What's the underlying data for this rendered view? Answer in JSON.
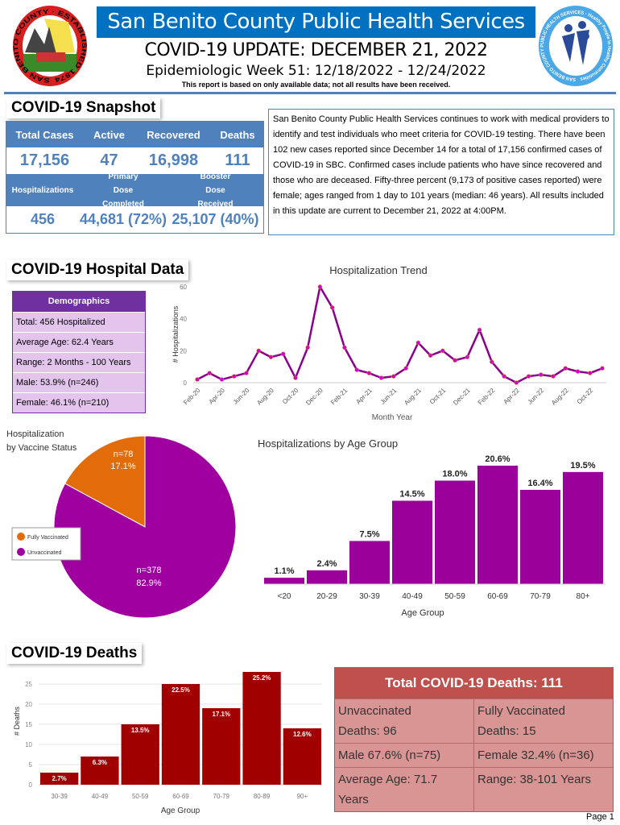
{
  "header": {
    "title": "San Benito County Public Health Services",
    "update": "COVID-19 UPDATE: DECEMBER 21, 2022",
    "week": "Epidemiologic Week 51: 12/18/2022 - 12/24/2022",
    "note": "This report is based on only available data; not all results have been received.",
    "left_logo_text": "SAN BENITO COUNTY · ESTABLISHED 1874",
    "right_logo_text": "SAN BENITO COUNTY PUBLIC HEALTH SERVICES · Healthy People in Healthy Communities"
  },
  "snapshot": {
    "title": "COVID-19 Snapshot",
    "row1_labels": [
      "Total Cases",
      "Active",
      "Recovered",
      "Deaths"
    ],
    "row1_values": [
      "17,156",
      "47",
      "16,998",
      "111"
    ],
    "row2_labels": [
      "Hospitalizations",
      "Primary Dose Completed",
      "Booster Dose Received"
    ],
    "row2_values": [
      "456",
      "44,681 (72%)",
      "25,107 (40%)"
    ],
    "paragraph": "San Benito County Public Health Services continues to work with medical providers to identify and test individuals who meet criteria for COVID-19 testing. There have been 102 new cases reported since December 14 for a total of 17,156 confirmed cases of COVID-19 in SBC. Confirmed cases include patients who have since recovered and those who are deceased. Fifty-three percent (9,173 of positive cases reported) were female; ages ranged from 1 day to 101 years (median: 46 years). All results included in this update are current to December 21, 2022 at 4:00PM."
  },
  "hospital": {
    "title": "COVID-19 Hospital Data",
    "demographics": {
      "title": "Demographics",
      "rows": [
        "Total: 456 Hospitalized",
        "Average Age: 62.4 Years",
        "Range: 2 Months - 100 Years",
        "Male: 53.9% (n=246)",
        "Female: 46.1% (n=210)"
      ]
    }
  },
  "deaths": {
    "title": "COVID-19 Deaths",
    "table": {
      "title": "Total COVID-19 Deaths: 111",
      "unvax": [
        "Unvaccinated",
        "Deaths: 96"
      ],
      "vax": [
        "Fully Vaccinated",
        "Deaths: 15"
      ],
      "male": "Male 67.6% (n=75)",
      "female": "Female 32.4% (n=36)",
      "avg_age": "Average Age: 71.7 Years",
      "range": "Range: 38-101 Years"
    }
  },
  "footer": {
    "page": "Page 1"
  },
  "colors": {
    "blue": "#0070c0",
    "snapshot_blue": "#4f81bd",
    "purple": "#a000a0",
    "orange": "#e36c0a",
    "death_red": "#a00000",
    "table_red": "#c0504d"
  },
  "chart_data": [
    {
      "type": "line",
      "title": "Hospitalization Trend",
      "xlabel": "Month Year",
      "ylabel": "# Hospitalizations",
      "ylim": [
        0,
        60
      ],
      "yticks": [
        0,
        20,
        40,
        60
      ],
      "x": [
        "Feb-20",
        "Mar-20",
        "Apr-20",
        "May-20",
        "Jun-20",
        "Jul-20",
        "Aug-20",
        "Sep-20",
        "Oct-20",
        "Nov-20",
        "Dec-20",
        "Jan-21",
        "Feb-21",
        "Mar-21",
        "Apr-21",
        "May-21",
        "Jun-21",
        "Jul-21",
        "Aug-21",
        "Sep-21",
        "Oct-21",
        "Nov-21",
        "Dec-21",
        "Jan-22",
        "Feb-22",
        "Mar-22",
        "Apr-22",
        "May-22",
        "Jun-22",
        "Jul-22",
        "Aug-22",
        "Sep-22",
        "Oct-22",
        "Nov-22"
      ],
      "values": [
        2,
        6,
        2,
        4,
        6,
        20,
        16,
        18,
        3,
        22,
        60,
        47,
        22,
        8,
        6,
        3,
        4,
        9,
        25,
        17,
        20,
        14,
        16,
        33,
        13,
        4,
        0,
        4,
        5,
        4,
        9,
        7,
        6,
        9
      ],
      "tick_labels": [
        "Feb-20",
        "Apr-20",
        "Jun-20",
        "Aug-20",
        "Oct-20",
        "Dec-20",
        "Feb-21",
        "Apr-21",
        "Jun-21",
        "Aug-21",
        "Oct-21",
        "Dec-21",
        "Feb-22",
        "Apr-22",
        "Jun-22",
        "Aug-22",
        "Oct-22"
      ],
      "grid": false
    },
    {
      "type": "pie",
      "title": "Hospitalization by Vaccine Status",
      "slices": [
        {
          "name": "Fully Vaccinated",
          "n": "n=78",
          "pct": "17.1%",
          "value": 78
        },
        {
          "name": "Unvaccinated",
          "n": "n=378",
          "pct": "82.9%",
          "value": 378
        }
      ],
      "legend": "left"
    },
    {
      "type": "bar",
      "title": "Hospitalizations by Age Group",
      "xlabel": "Age Group",
      "categories": [
        "<20",
        "20-29",
        "30-39",
        "40-49",
        "50-59",
        "60-69",
        "70-79",
        "80+"
      ],
      "values": [
        1.1,
        2.4,
        7.5,
        14.5,
        18.0,
        20.6,
        16.4,
        19.5
      ],
      "labels": [
        "1.1%",
        "2.4%",
        "7.5%",
        "14.5%",
        "18.0%",
        "20.6%",
        "16.4%",
        "19.5%"
      ]
    },
    {
      "type": "bar",
      "xlabel": "Age Group",
      "ylabel": "# Deaths",
      "ylim": [
        0,
        28
      ],
      "yticks": [
        0,
        5,
        10,
        15,
        20,
        25
      ],
      "categories": [
        "30-39",
        "40-49",
        "50-59",
        "60-69",
        "70-79",
        "80-89",
        "90+"
      ],
      "values": [
        3,
        7,
        15,
        25,
        19,
        28,
        14
      ],
      "labels": [
        "2.7%",
        "6.3%",
        "13.5%",
        "22.5%",
        "17.1%",
        "25.2%",
        "12.6%"
      ],
      "grid": true
    }
  ]
}
